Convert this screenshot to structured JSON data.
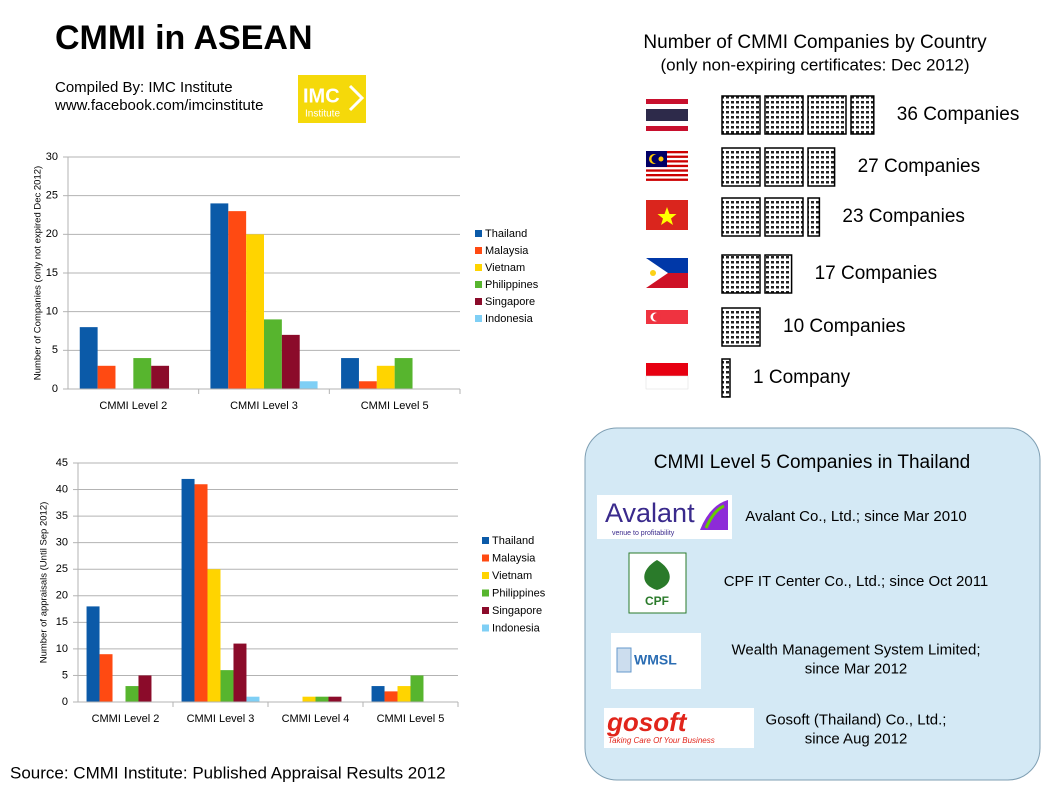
{
  "header": {
    "title": "CMMI in ASEAN",
    "compiled_by": "Compiled  By: IMC Institute",
    "url": "www.facebook.com/imcinstitute",
    "logo_text": "IMC",
    "logo_sub": "Institute"
  },
  "chart_data": [
    {
      "type": "bar",
      "y_label": "Number of Companies (only not expired Dec 2012)",
      "categories": [
        "CMMI Level 2",
        "CMMI Level 3",
        "CMMI Level 5"
      ],
      "series": [
        {
          "name": "Thailand",
          "color": "#0b5aa8",
          "values": [
            8,
            24,
            4
          ]
        },
        {
          "name": "Malaysia",
          "color": "#ff4a12",
          "values": [
            3,
            23,
            1
          ]
        },
        {
          "name": "Vietnam",
          "color": "#ffd400",
          "values": [
            0,
            20,
            3
          ]
        },
        {
          "name": "Philippines",
          "color": "#57b52e",
          "values": [
            4,
            9,
            4
          ]
        },
        {
          "name": "Singapore",
          "color": "#8b0b2a",
          "values": [
            3,
            7,
            0
          ]
        },
        {
          "name": "Indonesia",
          "color": "#7fcff5",
          "values": [
            0,
            1,
            0
          ]
        }
      ],
      "ylim": [
        0,
        30
      ],
      "yticks": [
        0,
        5,
        10,
        15,
        20,
        25,
        30
      ],
      "grid": true,
      "legend": "right"
    },
    {
      "type": "bar",
      "y_label": "Number of appraisals (Until Sep 2012)",
      "categories": [
        "CMMI Level 2",
        "CMMI Level 3",
        "CMMI Level 4",
        "CMMI Level 5"
      ],
      "series": [
        {
          "name": "Thailand",
          "color": "#0b5aa8",
          "values": [
            18,
            42,
            0,
            3
          ]
        },
        {
          "name": "Malaysia",
          "color": "#ff4a12",
          "values": [
            9,
            41,
            0,
            2
          ]
        },
        {
          "name": "Vietnam",
          "color": "#ffd400",
          "values": [
            0,
            25,
            1,
            3
          ]
        },
        {
          "name": "Philippines",
          "color": "#57b52e",
          "values": [
            3,
            6,
            1,
            5
          ]
        },
        {
          "name": "Singapore",
          "color": "#8b0b2a",
          "values": [
            5,
            11,
            1,
            0
          ]
        },
        {
          "name": "Indonesia",
          "color": "#7fcff5",
          "values": [
            0,
            1,
            0,
            0
          ]
        }
      ],
      "ylim": [
        0,
        45
      ],
      "yticks": [
        0,
        5,
        10,
        15,
        20,
        25,
        30,
        35,
        40,
        45
      ],
      "grid": true,
      "legend": "right"
    }
  ],
  "countries": {
    "title": "Number of CMMI Companies by Country",
    "subtitle": "(only non-expiring certificates: Dec 2012)",
    "rows": [
      {
        "value": 36,
        "label": "36 Companies"
      },
      {
        "value": 27,
        "label": "27 Companies"
      },
      {
        "value": 23,
        "label": "23 Companies"
      },
      {
        "value": 17,
        "label": "17 Companies"
      },
      {
        "value": 10,
        "label": "10 Companies"
      },
      {
        "value": 1,
        "label": "1 Company"
      }
    ]
  },
  "level5": {
    "title": "CMMI Level 5 Companies in Thailand",
    "companies": [
      {
        "logo": "Avalant",
        "logo_sub": "venue to profitability",
        "lines": [
          "Avalant Co., Ltd.; since Mar 2010"
        ]
      },
      {
        "logo": "CPF",
        "lines": [
          "CPF IT Center  Co., Ltd.; since Oct 2011"
        ]
      },
      {
        "logo": "WMSL",
        "lines": [
          "Wealth Management System Limited;",
          "since Mar 2012"
        ]
      },
      {
        "logo": "gosoft",
        "logo_sub": "Taking Care Of Your Business",
        "lines": [
          "Gosoft (Thailand) Co., Ltd.;",
          "since Aug 2012"
        ]
      }
    ]
  },
  "source": "Source: CMMI Institute: Published Appraisal Results 2012"
}
